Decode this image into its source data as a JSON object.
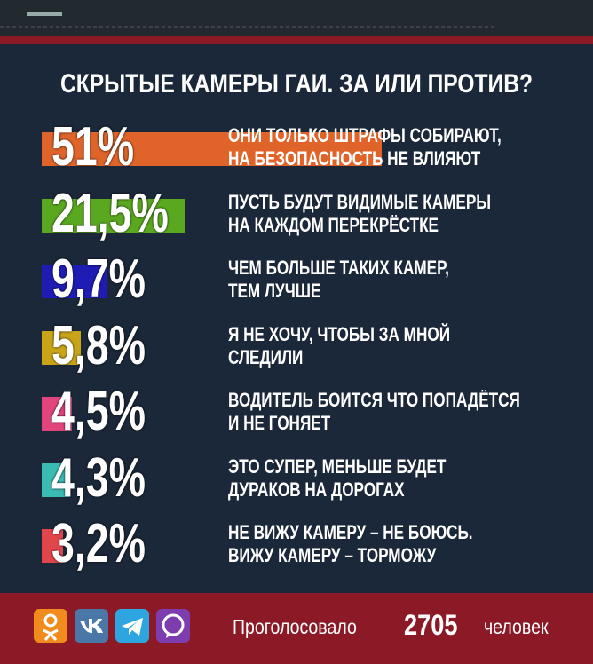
{
  "chart_data": {
    "type": "bar",
    "title": "СКРЫТЫЕ КАМЕРЫ ГАИ. ЗА ИЛИ ПРОТИВ?",
    "categories": [
      "ОНИ ТОЛЬКО ШТРАФЫ СОБИРАЮТ,\nНА БЕЗОПАСНОСТЬ НЕ ВЛИЯЮТ",
      "ПУСТЬ БУДУТ ВИДИМЫЕ КАМЕРЫ\nНА КАЖДОМ ПЕРЕКРЁСТКЕ",
      "ЧЕМ БОЛЬШЕ ТАКИХ КАМЕР,\nТЕМ ЛУЧШЕ",
      "Я НЕ ХОЧУ, ЧТОБЫ ЗА МНОЙ\nСЛЕДИЛИ",
      "ВОДИТЕЛЬ БОИТСЯ ЧТО ПОПАДЁТСЯ\nИ НЕ ГОНЯЕТ",
      "ЭТО СУПЕР, МЕНЬШЕ БУДЕТ\nДУРАКОВ НА ДОРОГАХ",
      "НЕ ВИЖУ КАМЕРУ – НЕ БОЮСЬ.\nВИЖУ КАМЕРУ – ТОРМОЖУ"
    ],
    "values": [
      51,
      21.5,
      9.7,
      5.8,
      4.5,
      4.3,
      3.2
    ],
    "value_labels": [
      "51%",
      "21,5%",
      "9,7%",
      "5,8%",
      "4,5%",
      "4,3%",
      "3,2%"
    ],
    "colors": [
      "#e0642a",
      "#5aa820",
      "#1f1cb5",
      "#c9a416",
      "#e2447c",
      "#3bbcb3",
      "#e0464a"
    ]
  },
  "footer": {
    "text_before": "Проголосовало",
    "count": 2705,
    "text_after": "человек"
  }
}
